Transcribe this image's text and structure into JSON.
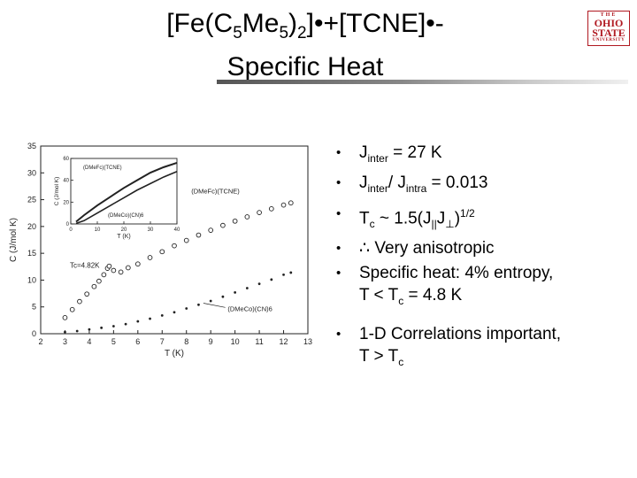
{
  "title": {
    "line1_a": "[Fe(C",
    "line1_sub1": "5",
    "line1_b": "Me",
    "line1_sub2": "5",
    "line1_c": ")",
    "line1_sub3": "2",
    "line1_d": "]•+[TCNE]•-",
    "line2": "Specific Heat"
  },
  "logo": {
    "line1": "THE",
    "line2": "OHIO",
    "line3": "STATE",
    "line4": "UNIVERSITY"
  },
  "bullets": [
    {
      "bullet": "•",
      "a": "J",
      "sub1": "inter",
      "b": " = 27 K"
    },
    {
      "bullet": "•",
      "a": "J",
      "sub1": "inter",
      "b": "/ J",
      "sub2": "intra",
      "c": " = 0.013"
    },
    {
      "bullet": "•",
      "a": "T",
      "sub1": "c",
      "b": " ~ 1.5(J",
      "sub2": "||",
      "c": "J",
      "sub3": "⊥",
      "d": ")",
      "sup": "1/2"
    },
    {
      "bullet": "•",
      "a": "∴ Very anisotropic"
    },
    {
      "bullet": "•",
      "a": "Specific heat: 4% entropy,",
      "b": "T < T",
      "sub1": "c",
      "c": " = 4.8 K"
    },
    {
      "bullet": "•",
      "a": "1-D Correlations important,",
      "b": "T > T",
      "sub1": "c"
    }
  ],
  "chart_data": {
    "type": "scatter",
    "ylabel": "C (J/mol K)",
    "xlabel": "T (K)",
    "xlim": [
      2,
      13
    ],
    "ylim": [
      0,
      35
    ],
    "xticks": [
      "2",
      "3",
      "4",
      "5",
      "6",
      "7",
      "8",
      "9",
      "10",
      "11",
      "12",
      "13"
    ],
    "yticks": [
      "0",
      "5",
      "10",
      "15",
      "20",
      "25",
      "30",
      "35"
    ],
    "annotations": [
      "Tc=4.82K",
      "(DMeFc)(TCNE)",
      "(DMeCo)(CN)6"
    ],
    "series": [
      {
        "name": "(DMeFc)(TCNE)",
        "x": [
          3.0,
          3.3,
          3.6,
          3.9,
          4.2,
          4.4,
          4.6,
          4.75,
          4.82,
          5.0,
          5.3,
          5.6,
          6.0,
          6.5,
          7.0,
          7.5,
          8.0,
          8.5,
          9.0,
          9.5,
          10.0,
          10.5,
          11.0,
          11.5,
          12.0,
          12.3
        ],
        "y": [
          3.0,
          4.5,
          6.0,
          7.4,
          8.8,
          9.8,
          11.0,
          12.2,
          12.6,
          11.8,
          11.5,
          12.3,
          13.0,
          14.2,
          15.3,
          16.4,
          17.4,
          18.4,
          19.3,
          20.2,
          21.0,
          21.8,
          22.6,
          23.3,
          24.0,
          24.4
        ]
      },
      {
        "name": "(DMeCo)(CN)6",
        "x": [
          3.0,
          3.5,
          4.0,
          4.5,
          5.0,
          5.5,
          6.0,
          6.5,
          7.0,
          7.5,
          8.0,
          8.5,
          9.0,
          9.5,
          10.0,
          10.5,
          11.0,
          11.5,
          12.0,
          12.3
        ],
        "y": [
          0.3,
          0.5,
          0.8,
          1.1,
          1.4,
          1.8,
          2.3,
          2.8,
          3.4,
          4.0,
          4.7,
          5.4,
          6.1,
          6.9,
          7.7,
          8.5,
          9.3,
          10.1,
          11.0,
          11.4
        ]
      }
    ],
    "inset": {
      "ylabel": "C (J/mol K)",
      "xlabel": "T (K)",
      "xlim": [
        0,
        40
      ],
      "ylim": [
        0,
        60
      ],
      "xticks": [
        "0",
        "10",
        "20",
        "30",
        "40"
      ],
      "yticks": [
        "0",
        "20",
        "40",
        "60"
      ],
      "annotations": [
        "(DMeFc)(TCNE)",
        "(DMeCo)(CN)6"
      ],
      "series": [
        {
          "name": "(DMeFc)(TCNE)",
          "x": [
            2,
            5,
            10,
            15,
            20,
            25,
            30,
            35,
            40
          ],
          "y": [
            2,
            8,
            17,
            25,
            33,
            40,
            47,
            52,
            56
          ]
        },
        {
          "name": "(DMeCo)(CN)6",
          "x": [
            2,
            5,
            10,
            15,
            20,
            25,
            30,
            35,
            40
          ],
          "y": [
            0.5,
            3,
            10,
            17,
            24,
            31,
            37,
            43,
            48
          ]
        }
      ]
    }
  }
}
